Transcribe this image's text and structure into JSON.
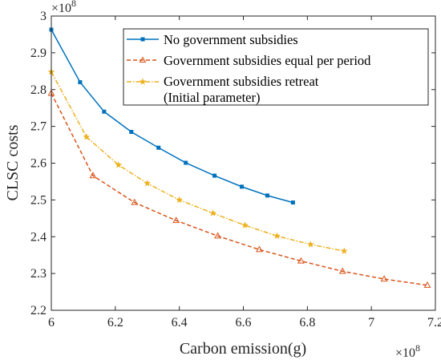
{
  "chart_data": {
    "type": "line",
    "xlabel": "Carbon emission(g)",
    "ylabel": "CLSC costs",
    "x_multiplier": "×10",
    "x_multiplier_exp": "8",
    "y_multiplier": "×10",
    "y_multiplier_exp": "8",
    "xlim": [
      6.0,
      7.2
    ],
    "ylim": [
      2.2,
      3.0
    ],
    "x_ticks": [
      "6",
      "6.2",
      "6.4",
      "6.6",
      "6.8",
      "7",
      "7.2"
    ],
    "y_ticks": [
      "2.2",
      "2.3",
      "2.4",
      "2.5",
      "2.6",
      "2.7",
      "2.8",
      "2.9",
      "3"
    ],
    "grid": false,
    "legend_position": "top-right",
    "series": [
      {
        "name": "No government subsidies",
        "color": "#0072BD",
        "marker": "square",
        "line_style": "solid",
        "x": [
          6.0,
          6.09,
          6.165,
          6.25,
          6.335,
          6.42,
          6.51,
          6.595,
          6.675,
          6.755
        ],
        "y": [
          2.963,
          2.82,
          2.74,
          2.685,
          2.642,
          2.601,
          2.566,
          2.536,
          2.512,
          2.493
        ]
      },
      {
        "name": "Government subsidies equal per period",
        "color": "#D95319",
        "marker": "triangle",
        "line_style": "dashed",
        "x": [
          6.0,
          6.13,
          6.26,
          6.39,
          6.52,
          6.65,
          6.78,
          6.91,
          7.04,
          7.175
        ],
        "y": [
          2.79,
          2.566,
          2.493,
          2.444,
          2.402,
          2.365,
          2.334,
          2.306,
          2.285,
          2.268
        ]
      },
      {
        "name": "Government subsidies retreat",
        "name_line2": "(Initial parameter)",
        "color": "#EDB120",
        "marker": "star",
        "line_style": "dashdot",
        "x": [
          6.0,
          6.11,
          6.21,
          6.3,
          6.4,
          6.505,
          6.605,
          6.705,
          6.81,
          6.915
        ],
        "y": [
          2.848,
          2.671,
          2.595,
          2.545,
          2.5,
          2.464,
          2.431,
          2.402,
          2.379,
          2.361
        ]
      }
    ]
  }
}
